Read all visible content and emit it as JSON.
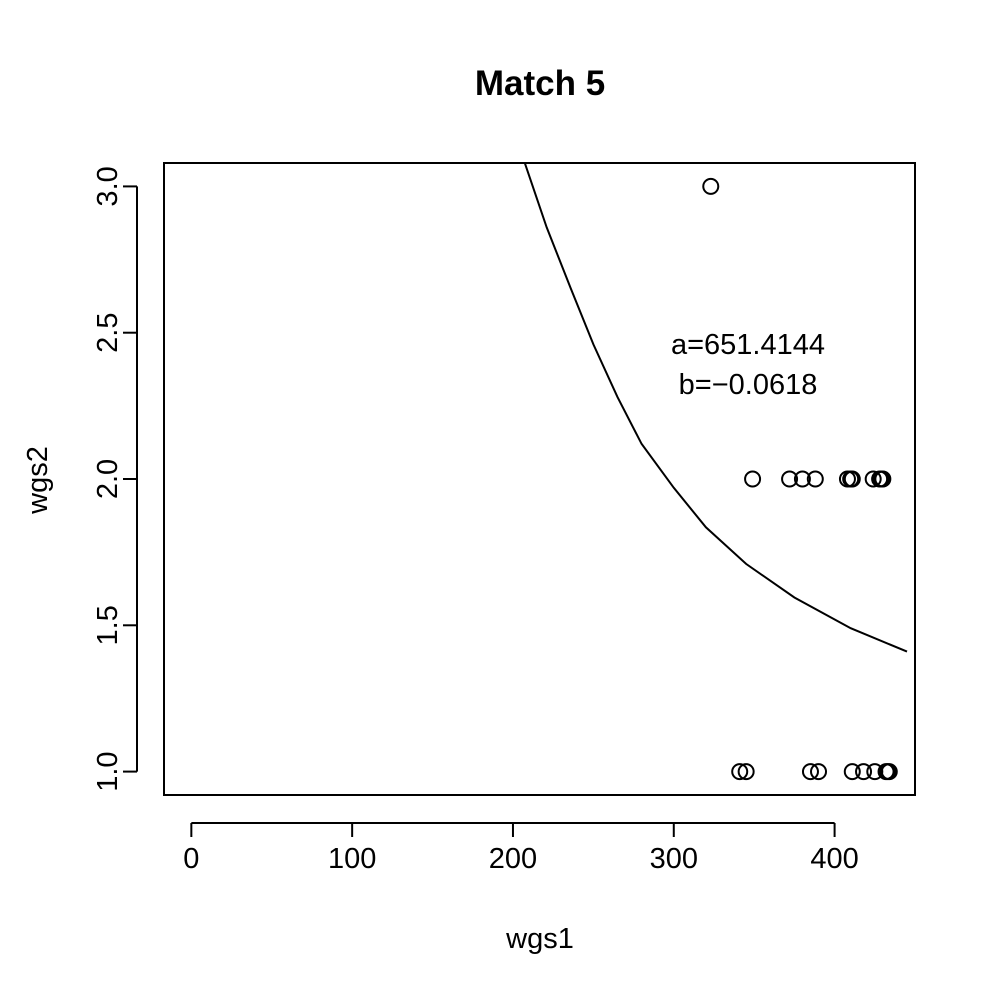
{
  "chart_data": {
    "type": "scatter",
    "title": "Match 5",
    "xlabel": "wgs1",
    "ylabel": "wgs2",
    "xlim": [
      -17,
      450
    ],
    "ylim": [
      0.92,
      3.08
    ],
    "xticks": [
      0,
      100,
      200,
      300,
      400
    ],
    "yticks": [
      1.0,
      1.5,
      2.0,
      2.5,
      3.0
    ],
    "xtick_labels": [
      "0",
      "100",
      "200",
      "300",
      "400"
    ],
    "ytick_labels": [
      "1.0",
      "1.5",
      "2.0",
      "2.5",
      "3.0"
    ],
    "grid": false,
    "points": [
      {
        "x": 323,
        "y": 3
      },
      {
        "x": 349,
        "y": 2
      },
      {
        "x": 372,
        "y": 2
      },
      {
        "x": 380,
        "y": 2
      },
      {
        "x": 388,
        "y": 2
      },
      {
        "x": 408,
        "y": 2
      },
      {
        "x": 410,
        "y": 2
      },
      {
        "x": 411,
        "y": 2
      },
      {
        "x": 424,
        "y": 2
      },
      {
        "x": 428,
        "y": 2
      },
      {
        "x": 429,
        "y": 2
      },
      {
        "x": 430,
        "y": 2
      },
      {
        "x": 341,
        "y": 1
      },
      {
        "x": 345,
        "y": 1
      },
      {
        "x": 385,
        "y": 1
      },
      {
        "x": 390,
        "y": 1
      },
      {
        "x": 411,
        "y": 1
      },
      {
        "x": 418,
        "y": 1
      },
      {
        "x": 425,
        "y": 1
      },
      {
        "x": 432,
        "y": 1
      },
      {
        "x": 433,
        "y": 1
      },
      {
        "x": 434,
        "y": 1
      }
    ],
    "curve": {
      "a": 651.4144,
      "b": -0.0618,
      "x_range": [
        207,
        445
      ],
      "y_values": [
        3.086,
        2.86,
        2.65,
        2.46,
        2.28,
        2.12,
        1.97,
        1.835,
        1.71,
        1.595,
        1.49,
        1.41
      ],
      "x_values": [
        207,
        221,
        236,
        250,
        265,
        280,
        300,
        320,
        345,
        375,
        410,
        445
      ]
    },
    "annotations": [
      "a=651.4144",
      "b=−0.0618"
    ]
  }
}
